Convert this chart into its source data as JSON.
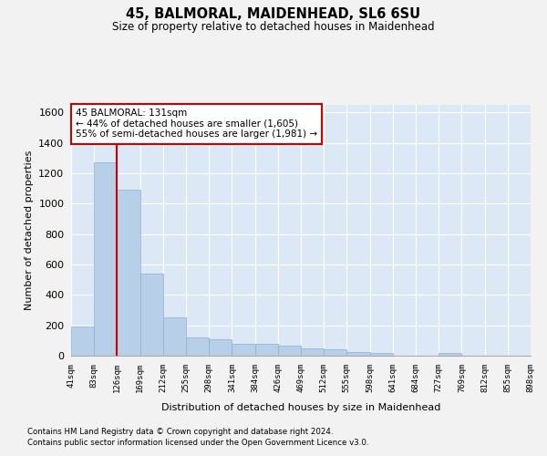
{
  "title": "45, BALMORAL, MAIDENHEAD, SL6 6SU",
  "subtitle": "Size of property relative to detached houses in Maidenhead",
  "xlabel": "Distribution of detached houses by size in Maidenhead",
  "ylabel": "Number of detached properties",
  "bar_color": "#b8cfe8",
  "bar_edge_color": "#8aafd4",
  "bg_color": "#dce8f5",
  "fig_bg_color": "#f2f2f2",
  "grid_color": "#ffffff",
  "bin_labels": [
    "41sqm",
    "83sqm",
    "126sqm",
    "169sqm",
    "212sqm",
    "255sqm",
    "298sqm",
    "341sqm",
    "384sqm",
    "426sqm",
    "469sqm",
    "512sqm",
    "555sqm",
    "598sqm",
    "641sqm",
    "684sqm",
    "727sqm",
    "769sqm",
    "812sqm",
    "855sqm",
    "898sqm"
  ],
  "bar_heights": [
    190,
    1270,
    1090,
    540,
    250,
    120,
    110,
    80,
    80,
    65,
    50,
    40,
    25,
    20,
    0,
    0,
    18,
    0,
    0,
    0
  ],
  "ylim": [
    0,
    1650
  ],
  "yticks": [
    0,
    200,
    400,
    600,
    800,
    1000,
    1200,
    1400,
    1600
  ],
  "property_line_x": 2.0,
  "property_label": "45 BALMORAL: 131sqm",
  "ann_line1": "← 44% of detached houses are smaller (1,605)",
  "ann_line2": "55% of semi-detached houses are larger (1,981) →",
  "ann_color": "#cc0000",
  "footer_line1": "Contains HM Land Registry data © Crown copyright and database right 2024.",
  "footer_line2": "Contains public sector information licensed under the Open Government Licence v3.0."
}
